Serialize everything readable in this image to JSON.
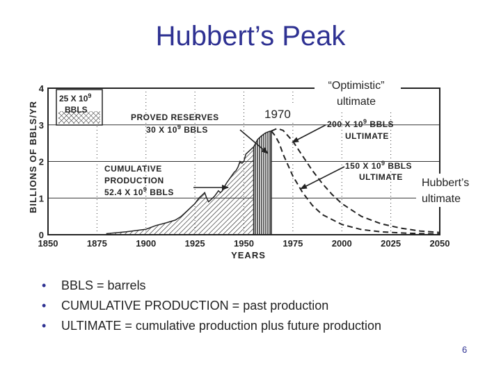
{
  "slide": {
    "title": "Hubbert’s Peak",
    "page_number": "6",
    "bullets": [
      "BBLS = barrels",
      "CUMULATIVE PRODUCTION = past production",
      "ULTIMATE = cumulative production plus future production"
    ]
  },
  "chart_data": {
    "type": "area",
    "xlabel": "YEARS",
    "ylabel": "BILLIONS OF BBLS/YR",
    "xlim": [
      1850,
      2050
    ],
    "ylim": [
      0,
      4
    ],
    "x_ticks": [
      1850,
      1875,
      1900,
      1925,
      1950,
      1975,
      2000,
      2025,
      2050
    ],
    "y_ticks": [
      0,
      1,
      2,
      3,
      4
    ],
    "grid": true,
    "series": [
      {
        "label": "CUMULATIVE PRODUCTION 52.4 X 10⁹ BBLS",
        "style": "hatched area",
        "points": [
          [
            1880,
            0.03
          ],
          [
            1890,
            0.08
          ],
          [
            1900,
            0.15
          ],
          [
            1905,
            0.25
          ],
          [
            1910,
            0.32
          ],
          [
            1915,
            0.4
          ],
          [
            1918,
            0.5
          ],
          [
            1920,
            0.6
          ],
          [
            1923,
            0.75
          ],
          [
            1925,
            0.85
          ],
          [
            1927,
            1.0
          ],
          [
            1929,
            1.1
          ],
          [
            1930,
            1.15
          ],
          [
            1931,
            1.0
          ],
          [
            1932,
            0.9
          ],
          [
            1933,
            0.95
          ],
          [
            1934,
            1.0
          ],
          [
            1935,
            1.05
          ],
          [
            1937,
            1.2
          ],
          [
            1938,
            1.15
          ],
          [
            1939,
            1.2
          ],
          [
            1940,
            1.3
          ],
          [
            1941,
            1.4
          ],
          [
            1943,
            1.55
          ],
          [
            1945,
            1.7
          ],
          [
            1946,
            1.75
          ],
          [
            1947,
            1.85
          ],
          [
            1948,
            2.0
          ],
          [
            1949,
            1.95
          ],
          [
            1950,
            2.0
          ],
          [
            1951,
            2.2
          ],
          [
            1952,
            2.25
          ],
          [
            1953,
            2.3
          ],
          [
            1954,
            2.35
          ],
          [
            1955,
            2.4
          ]
        ]
      },
      {
        "label": "PROVED RESERVES 30 X 10⁹ BBLS",
        "style": "vertical-line area",
        "points": [
          [
            1955,
            2.4
          ],
          [
            1957,
            2.6
          ],
          [
            1959,
            2.7
          ],
          [
            1961,
            2.78
          ],
          [
            1963,
            2.82
          ],
          [
            1964,
            2.83
          ]
        ]
      },
      {
        "label": "200 X 10⁹ BBLS ULTIMATE",
        "style": "dashed",
        "points": [
          [
            1964,
            2.83
          ],
          [
            1967,
            2.9
          ],
          [
            1970,
            2.85
          ],
          [
            1975,
            2.55
          ],
          [
            1980,
            2.15
          ],
          [
            1985,
            1.75
          ],
          [
            1990,
            1.4
          ],
          [
            1995,
            1.1
          ],
          [
            2000,
            0.85
          ],
          [
            2010,
            0.5
          ],
          [
            2020,
            0.3
          ],
          [
            2030,
            0.18
          ],
          [
            2040,
            0.1
          ],
          [
            2050,
            0.06
          ]
        ]
      },
      {
        "label": "150 X 10⁹ BBLS ULTIMATE",
        "style": "dashed",
        "points": [
          [
            1964,
            2.83
          ],
          [
            1966,
            2.7
          ],
          [
            1968,
            2.5
          ],
          [
            1970,
            2.2
          ],
          [
            1975,
            1.6
          ],
          [
            1980,
            1.15
          ],
          [
            1985,
            0.8
          ],
          [
            1990,
            0.55
          ],
          [
            2000,
            0.28
          ],
          [
            2010,
            0.14
          ],
          [
            2020,
            0.08
          ],
          [
            2030,
            0.05
          ],
          [
            2040,
            0.03
          ],
          [
            2050,
            0.02
          ]
        ]
      }
    ],
    "annotations": [
      {
        "text": "25 X 10⁹ BBLS",
        "style": "crosshatched legend box"
      },
      {
        "text": "PROVED RESERVES 30 X 10⁹ BBLS"
      },
      {
        "text": "CUMULATIVE PRODUCTION 52.4 X 10⁹ BBLS"
      },
      {
        "text": "200 X 10⁹ BBLS ULTIMATE"
      },
      {
        "text": "150 X 10⁹ BBLS ULTIMATE"
      }
    ],
    "overlay_labels": {
      "year_label": "1970",
      "optimistic": [
        "“Optimistic”",
        "ultimate"
      ],
      "hubbert": [
        "Hubbert’s",
        "ultimate"
      ]
    }
  }
}
